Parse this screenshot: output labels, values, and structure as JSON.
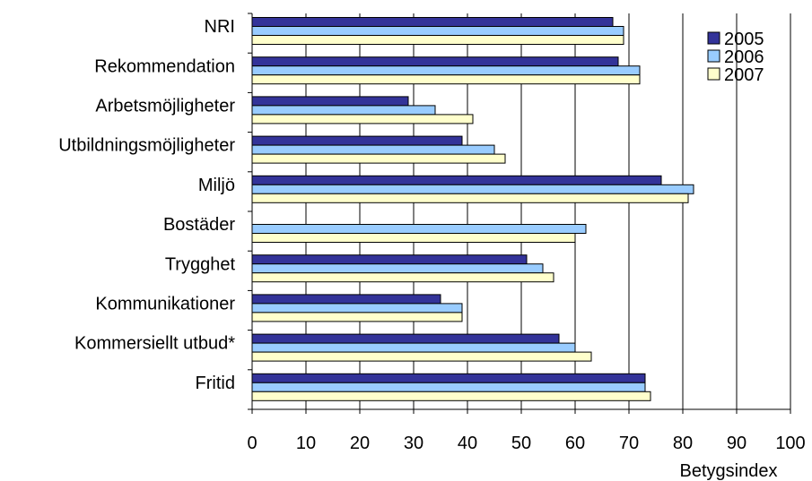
{
  "chart_data": {
    "type": "bar",
    "orientation": "horizontal",
    "categories": [
      "NRI",
      "Rekommendation",
      "Arbetsmöjligheter",
      "Utbildningsmöjligheter",
      "Miljö",
      "Bostäder",
      "Trygghet",
      "Kommunikationer",
      "Kommersiellt utbud*",
      "Fritid"
    ],
    "series": [
      {
        "name": "2005",
        "color": "#333399",
        "values": [
          67,
          68,
          29,
          39,
          76,
          null,
          51,
          35,
          57,
          73
        ]
      },
      {
        "name": "2006",
        "color": "#99ccff",
        "values": [
          69,
          72,
          34,
          45,
          82,
          62,
          54,
          39,
          60,
          73
        ]
      },
      {
        "name": "2007",
        "color": "#ffffcc",
        "values": [
          69,
          72,
          41,
          47,
          81,
          60,
          56,
          39,
          63,
          74
        ]
      }
    ],
    "xlim": [
      0,
      100
    ],
    "xticks": [
      0,
      10,
      20,
      30,
      40,
      50,
      60,
      70,
      80,
      90,
      100
    ],
    "xlabel": "Betygsindex",
    "grid": "vertical",
    "legend_position": "top-right"
  }
}
